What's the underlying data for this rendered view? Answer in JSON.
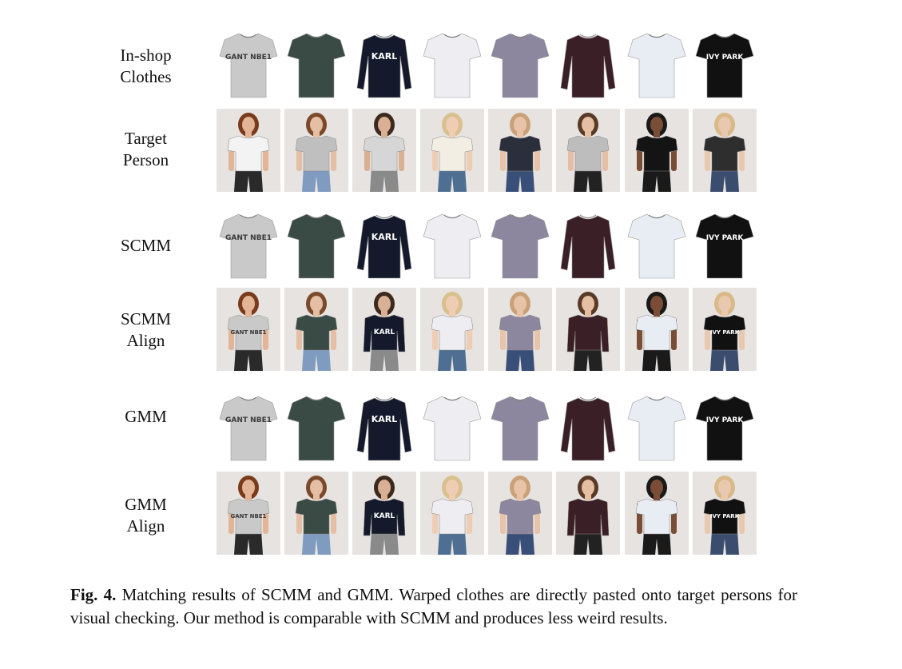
{
  "rows": [
    {
      "label_lines": [
        "In-shop",
        "Clothes"
      ],
      "kind": "garment"
    },
    {
      "label_lines": [
        "Target",
        "Person"
      ],
      "kind": "person"
    },
    {
      "label_lines": [
        "SCMM"
      ],
      "kind": "garment"
    },
    {
      "label_lines": [
        "SCMM",
        "Align"
      ],
      "kind": "person"
    },
    {
      "label_lines": [
        "GMM"
      ],
      "kind": "garment"
    },
    {
      "label_lines": [
        "GMM",
        "Align"
      ],
      "kind": "person"
    }
  ],
  "columns": [
    {
      "shirt_color": "#c9c9c9",
      "print": "GANT NBE1",
      "print_color": "#3a3a3a",
      "sleeve": "short",
      "skin": "#e2b597",
      "hair": "#7a3a1c",
      "pants": "#2a2a2a",
      "shirt_person": "#f3f3f3"
    },
    {
      "shirt_color": "#3a4a44",
      "print": "",
      "print_color": "#3a4a44",
      "sleeve": "short",
      "skin": "#e5bfa4",
      "hair": "#7b4a2a",
      "pants": "#7f9bbf",
      "shirt_person": "#bfbfbf"
    },
    {
      "shirt_color": "#141a2b",
      "print": "KARL",
      "print_color": "#ffffff",
      "sleeve": "long",
      "skin": "#d9b094",
      "hair": "#3d2a1e",
      "pants": "#8a8a8a",
      "shirt_person": "#d6d6d6"
    },
    {
      "shirt_color": "#eeeef2",
      "print": "",
      "print_color": "#eeeef2",
      "sleeve": "short",
      "skin": "#efcdb4",
      "hair": "#d9c08f",
      "pants": "#4e6e92",
      "shirt_person": "#f2eee4"
    },
    {
      "shirt_color": "#8c869e",
      "print": "",
      "print_color": "#8c869e",
      "sleeve": "short",
      "skin": "#e8c3a8",
      "hair": "#c9a179",
      "pants": "#3a4f78",
      "shirt_person": "#2b2f3c"
    },
    {
      "shirt_color": "#3a1f27",
      "print": "",
      "print_color": "#3a1f27",
      "sleeve": "long",
      "skin": "#e5bfa4",
      "hair": "#5a3a26",
      "pants": "#222222",
      "shirt_person": "#bdbdbd"
    },
    {
      "shirt_color": "#e8edf4",
      "print": "",
      "print_color": "#e8edf4",
      "sleeve": "short",
      "skin": "#7a4d36",
      "hair": "#1a1a1a",
      "pants": "#1a1a1a",
      "shirt_person": "#141414"
    },
    {
      "shirt_color": "#111111",
      "print": "IVY PARK",
      "print_color": "#ffffff",
      "sleeve": "short",
      "skin": "#e8c8ae",
      "hair": "#d9b988",
      "pants": "#3b4d6e",
      "shirt_person": "#2e2e2e"
    }
  ],
  "caption": {
    "fig_label": "Fig. 4.",
    "text": "Matching results of SCMM and GMM. Warped clothes are directly pasted onto target persons for visual checking. Our method is comparable with SCMM and produces less weird results."
  }
}
